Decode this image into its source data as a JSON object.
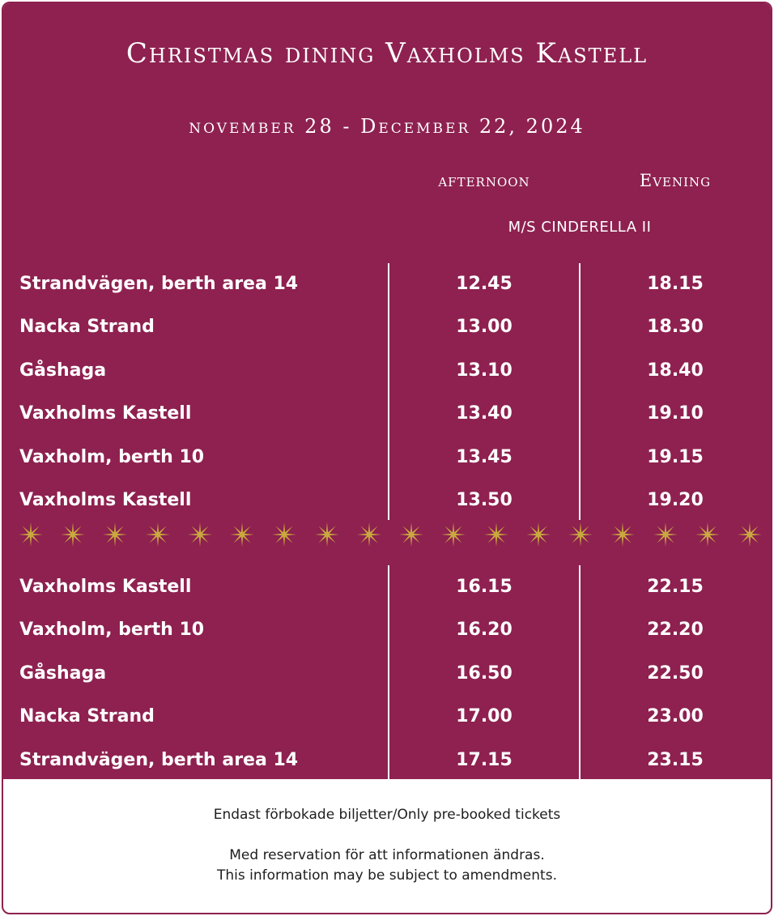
{
  "header": {
    "title": "Christmas dining Vaxholms Kastell",
    "date_range": "november 28 - December 22, 2024"
  },
  "columns": {
    "afternoon": "afternoon",
    "evening": "Evening",
    "vessel": "M/S CINDERELLA II"
  },
  "outbound": [
    {
      "stop": "Strandvägen, berth area 14",
      "afternoon": "12.45",
      "evening": "18.15"
    },
    {
      "stop": "Nacka Strand",
      "afternoon": "13.00",
      "evening": "18.30"
    },
    {
      "stop": "Gåshaga",
      "afternoon": "13.10",
      "evening": "18.40"
    },
    {
      "stop": "Vaxholms Kastell",
      "afternoon": "13.40",
      "evening": "19.10"
    },
    {
      "stop": "Vaxholm, berth 10",
      "afternoon": "13.45",
      "evening": "19.15"
    },
    {
      "stop": "Vaxholms Kastell",
      "afternoon": "13.50",
      "evening": "19.20"
    }
  ],
  "return": [
    {
      "stop": "Vaxholms Kastell",
      "afternoon": "16.15",
      "evening": "22.15"
    },
    {
      "stop": "Vaxholm, berth 10",
      "afternoon": "16.20",
      "evening": "22.20"
    },
    {
      "stop": "Gåshaga",
      "afternoon": "16.50",
      "evening": "22.50"
    },
    {
      "stop": "Nacka Strand",
      "afternoon": "17.00",
      "evening": "23.00"
    },
    {
      "stop": "Strandvägen, berth area 14",
      "afternoon": "17.15",
      "evening": "23.15"
    }
  ],
  "divider": {
    "icon": "star-icon",
    "count": 18,
    "color": "#c9a93f"
  },
  "footer": {
    "note": "Endast förbokade biljetter/Only pre-booked tickets",
    "disclaimer_sv": "Med reservation för att informationen ändras.",
    "disclaimer_en": "This information may be subject to amendments."
  },
  "colors": {
    "background": "#8e2150",
    "text": "#ffffff",
    "accent": "#c9a93f"
  }
}
